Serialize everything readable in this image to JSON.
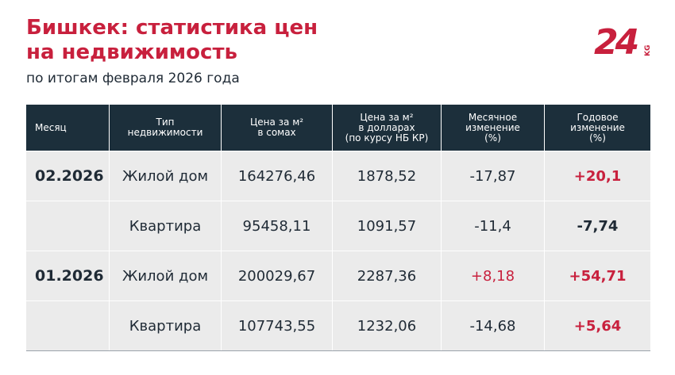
{
  "title_line1": "Бишкек: статистика цен",
  "title_line2": "на недвижимость",
  "subtitle": "по итогам февраля 2026 года",
  "logo": {
    "text": "24",
    "suffix": "KG",
    "color": "#c8203d"
  },
  "headers": [
    "Месяц",
    "Тип\nнедвижимости",
    "Цена за м²\nв сомах",
    "Цена за м²\nв долларах\n(по курсу НБ КР)",
    "Месячное\nизменение\n(%)",
    "Годовое\nизменение\n(%)"
  ],
  "rows": [
    {
      "month": "02.2026",
      "type": "Жилой дом",
      "som": "164276,46",
      "usd": "1878,52",
      "monthly": "-17,87",
      "yearly": "+20,1"
    },
    {
      "month": "",
      "type": "Квартира",
      "som": "95458,11",
      "usd": "1091,57",
      "monthly": "-11,4",
      "yearly": "-7,74"
    },
    {
      "month": "01.2026",
      "type": "Жилой дом",
      "som": "200029,67",
      "usd": "2287,36",
      "monthly": "+8,18",
      "yearly": "+54,71"
    },
    {
      "month": "",
      "type": "Квартира",
      "som": "107743,55",
      "usd": "1232,06",
      "monthly": "-14,68",
      "yearly": "+5,64"
    }
  ],
  "colors": {
    "accent": "#c8203d",
    "header_bg": "#1c2f3b",
    "row_bg": "#ebebeb"
  }
}
